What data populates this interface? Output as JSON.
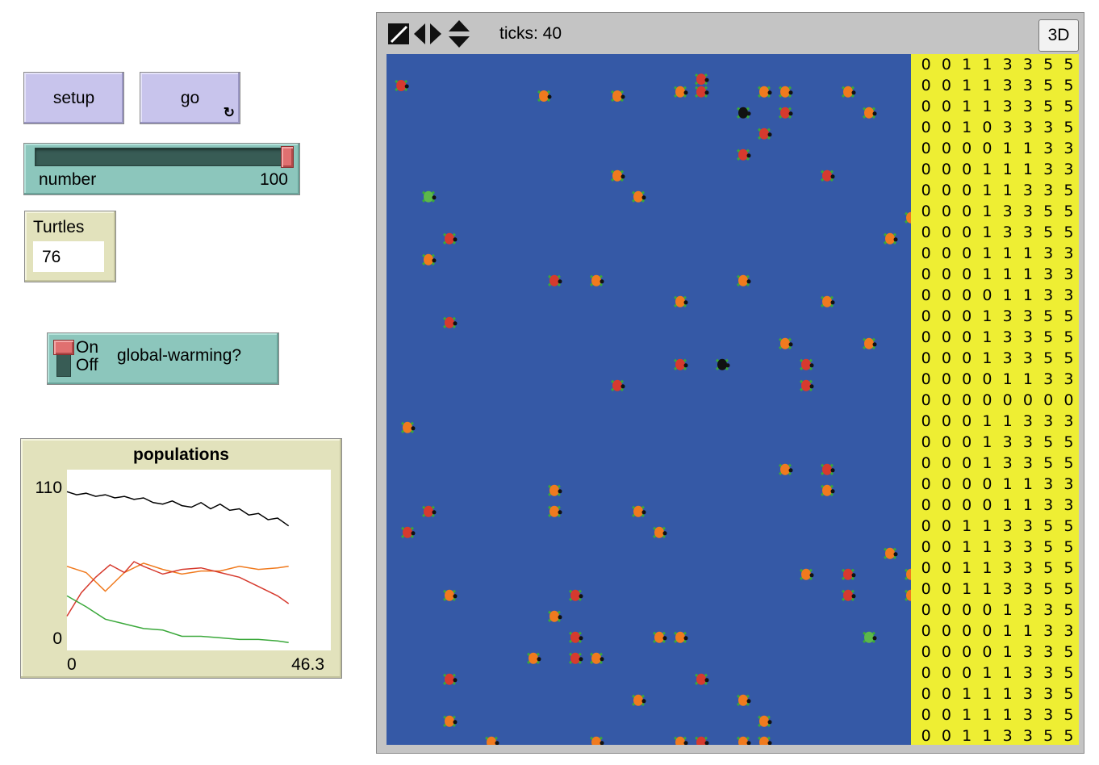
{
  "buttons": {
    "setup": "setup",
    "go": "go"
  },
  "go_forever_icon": "↻",
  "slider": {
    "label": "number",
    "value": "100",
    "fill_fraction": 1.0
  },
  "monitor": {
    "label": "Turtles",
    "value": "76"
  },
  "switch": {
    "label": "global-warming?",
    "on_text": "On",
    "off_text": "Off",
    "state": "on"
  },
  "plot": {
    "title": "populations",
    "y_max_label": "110",
    "y_min_label": "0",
    "x_min_label": "0",
    "x_max_label": "46.3"
  },
  "view": {
    "ticks_label": "ticks: 40",
    "button_3d": "3D"
  },
  "icons": [
    "resize-icon",
    "horizontal-arrows-icon",
    "vertical-arrows-icon",
    "forever-icon"
  ],
  "colors": {
    "world": "#3559a6",
    "patch_display": "#eeee33",
    "button": "#c8c4ec",
    "slider": "#8cc6bc",
    "monitor": "#e2e2bc"
  },
  "turtles": [
    {
      "x": 7,
      "y": 2,
      "c": "#f07a1e"
    },
    {
      "x": 0.2,
      "y": 1.5,
      "c": "#d63a2e"
    },
    {
      "x": 10.5,
      "y": 2,
      "c": "#f07a1e"
    },
    {
      "x": 14.5,
      "y": 1.2,
      "c": "#d63a2e"
    },
    {
      "x": 13.5,
      "y": 1.8,
      "c": "#f07a1e"
    },
    {
      "x": 14.5,
      "y": 1.8,
      "c": "#d63a2e"
    },
    {
      "x": 17.5,
      "y": 1.8,
      "c": "#f07a1e"
    },
    {
      "x": 18.5,
      "y": 1.8,
      "c": "#f07a1e"
    },
    {
      "x": 21.5,
      "y": 1.8,
      "c": "#f07a1e"
    },
    {
      "x": 16.5,
      "y": 2.8,
      "c": "#111111"
    },
    {
      "x": 18.5,
      "y": 2.8,
      "c": "#d63a2e"
    },
    {
      "x": 22.5,
      "y": 2.8,
      "c": "#f07a1e"
    },
    {
      "x": 17.5,
      "y": 3.8,
      "c": "#d63a2e"
    },
    {
      "x": 16.5,
      "y": 4.8,
      "c": "#d63a2e"
    },
    {
      "x": 10.5,
      "y": 5.8,
      "c": "#f07a1e"
    },
    {
      "x": 20.5,
      "y": 5.8,
      "c": "#d63a2e"
    },
    {
      "x": 1.5,
      "y": 6.8,
      "c": "#5cb84a"
    },
    {
      "x": 11.5,
      "y": 6.8,
      "c": "#f07a1e"
    },
    {
      "x": 24.5,
      "y": 7.8,
      "c": "#f07a1e"
    },
    {
      "x": 2.5,
      "y": 8.8,
      "c": "#d63a2e"
    },
    {
      "x": 23.5,
      "y": 8.8,
      "c": "#f07a1e"
    },
    {
      "x": 1.5,
      "y": 9.8,
      "c": "#f07a1e"
    },
    {
      "x": 7.5,
      "y": 10.8,
      "c": "#d63a2e"
    },
    {
      "x": 9.5,
      "y": 10.8,
      "c": "#f07a1e"
    },
    {
      "x": 16.5,
      "y": 10.8,
      "c": "#f07a1e"
    },
    {
      "x": 13.5,
      "y": 11.8,
      "c": "#f07a1e"
    },
    {
      "x": 20.5,
      "y": 11.8,
      "c": "#f07a1e"
    },
    {
      "x": 2.5,
      "y": 12.8,
      "c": "#d63a2e"
    },
    {
      "x": 18.5,
      "y": 13.8,
      "c": "#f07a1e"
    },
    {
      "x": 22.5,
      "y": 13.8,
      "c": "#f07a1e"
    },
    {
      "x": 13.5,
      "y": 14.8,
      "c": "#d63a2e"
    },
    {
      "x": 15.5,
      "y": 14.8,
      "c": "#111111"
    },
    {
      "x": 19.5,
      "y": 14.8,
      "c": "#d63a2e"
    },
    {
      "x": 10.5,
      "y": 15.8,
      "c": "#d63a2e"
    },
    {
      "x": 19.5,
      "y": 15.8,
      "c": "#d63a2e"
    },
    {
      "x": 0.5,
      "y": 17.8,
      "c": "#f07a1e"
    },
    {
      "x": 18.5,
      "y": 19.8,
      "c": "#f07a1e"
    },
    {
      "x": 20.5,
      "y": 19.8,
      "c": "#d63a2e"
    },
    {
      "x": 7.5,
      "y": 20.8,
      "c": "#f07a1e"
    },
    {
      "x": 20.5,
      "y": 20.8,
      "c": "#f07a1e"
    },
    {
      "x": 1.5,
      "y": 21.8,
      "c": "#d63a2e"
    },
    {
      "x": 7.5,
      "y": 21.8,
      "c": "#f07a1e"
    },
    {
      "x": 11.5,
      "y": 21.8,
      "c": "#f07a1e"
    },
    {
      "x": 0.5,
      "y": 22.8,
      "c": "#d63a2e"
    },
    {
      "x": 12.5,
      "y": 22.8,
      "c": "#f07a1e"
    },
    {
      "x": 23.5,
      "y": 23.8,
      "c": "#f07a1e"
    },
    {
      "x": 19.5,
      "y": 24.8,
      "c": "#f07a1e"
    },
    {
      "x": 21.5,
      "y": 24.8,
      "c": "#d63a2e"
    },
    {
      "x": 24.5,
      "y": 24.8,
      "c": "#f07a1e"
    },
    {
      "x": 2.5,
      "y": 25.8,
      "c": "#f07a1e"
    },
    {
      "x": 8.5,
      "y": 25.8,
      "c": "#d63a2e"
    },
    {
      "x": 21.5,
      "y": 25.8,
      "c": "#d63a2e"
    },
    {
      "x": 24.5,
      "y": 25.8,
      "c": "#f07a1e"
    },
    {
      "x": 7.5,
      "y": 26.8,
      "c": "#f07a1e"
    },
    {
      "x": 8.5,
      "y": 27.8,
      "c": "#d63a2e"
    },
    {
      "x": 12.5,
      "y": 27.8,
      "c": "#f07a1e"
    },
    {
      "x": 13.5,
      "y": 27.8,
      "c": "#f07a1e"
    },
    {
      "x": 22.5,
      "y": 27.8,
      "c": "#5cb84a"
    },
    {
      "x": 6.5,
      "y": 28.8,
      "c": "#f07a1e"
    },
    {
      "x": 8.5,
      "y": 28.8,
      "c": "#d63a2e"
    },
    {
      "x": 9.5,
      "y": 28.8,
      "c": "#f07a1e"
    },
    {
      "x": 2.5,
      "y": 29.8,
      "c": "#d63a2e"
    },
    {
      "x": 14.5,
      "y": 29.8,
      "c": "#d63a2e"
    },
    {
      "x": 11.5,
      "y": 30.8,
      "c": "#f07a1e"
    },
    {
      "x": 16.5,
      "y": 30.8,
      "c": "#f07a1e"
    },
    {
      "x": 2.5,
      "y": 31.8,
      "c": "#f07a1e"
    },
    {
      "x": 17.5,
      "y": 31.8,
      "c": "#f07a1e"
    },
    {
      "x": 4.5,
      "y": 32.8,
      "c": "#f07a1e"
    },
    {
      "x": 9.5,
      "y": 32.8,
      "c": "#f07a1e"
    },
    {
      "x": 13.5,
      "y": 32.8,
      "c": "#f07a1e"
    },
    {
      "x": 14.5,
      "y": 32.8,
      "c": "#d63a2e"
    },
    {
      "x": 16.5,
      "y": 32.8,
      "c": "#f07a1e"
    },
    {
      "x": 17.5,
      "y": 32.8,
      "c": "#f07a1e"
    }
  ],
  "patch_grid": [
    "00113355",
    "00113355",
    "00113355",
    "00103335",
    "00001133",
    "00011133",
    "00011335",
    "00013355",
    "00013355",
    "00011133",
    "00011133",
    "00001133",
    "00013355",
    "00013355",
    "00013355",
    "00001133",
    "00000000",
    "00011333",
    "00013355",
    "00013355",
    "00001133",
    "00001133",
    "00113355",
    "00113355",
    "00113355",
    "00113355",
    "00001335",
    "00001133",
    "00001335",
    "00011335",
    "00111335",
    "00111335",
    "00113355"
  ],
  "chart_data": {
    "type": "line",
    "title": "populations",
    "xlim": [
      0,
      46.3
    ],
    "ylim": [
      0,
      110
    ],
    "series": [
      {
        "color": "#000000",
        "x": [
          0,
          2,
          4,
          6,
          8,
          10,
          12,
          14,
          16,
          18,
          20,
          22,
          24,
          26,
          28,
          30,
          32,
          34,
          36,
          38,
          40,
          42,
          44,
          46.3
        ],
        "values": [
          100,
          98,
          99,
          97,
          98,
          96,
          97,
          95,
          96,
          93,
          92,
          94,
          91,
          90,
          93,
          89,
          92,
          88,
          89,
          85,
          86,
          82,
          83,
          78
        ]
      },
      {
        "color": "#f07a1e",
        "x": [
          0,
          4,
          8,
          12,
          16,
          20,
          24,
          28,
          32,
          36,
          40,
          44,
          46.3
        ],
        "values": [
          52,
          48,
          36,
          48,
          54,
          50,
          47,
          49,
          49,
          52,
          50,
          51,
          52
        ]
      },
      {
        "color": "#d63a2e",
        "x": [
          0,
          3,
          6,
          9,
          12,
          14,
          16,
          20,
          24,
          28,
          32,
          36,
          40,
          44,
          46.3
        ],
        "values": [
          20,
          35,
          45,
          53,
          48,
          55,
          52,
          47,
          50,
          51,
          48,
          45,
          39,
          33,
          28
        ]
      },
      {
        "color": "#3aa83a",
        "x": [
          0,
          4,
          8,
          12,
          16,
          20,
          24,
          28,
          32,
          36,
          40,
          44,
          46.3
        ],
        "values": [
          33,
          26,
          18,
          15,
          12,
          11,
          7,
          7,
          6,
          5,
          5,
          4,
          3
        ]
      }
    ]
  }
}
